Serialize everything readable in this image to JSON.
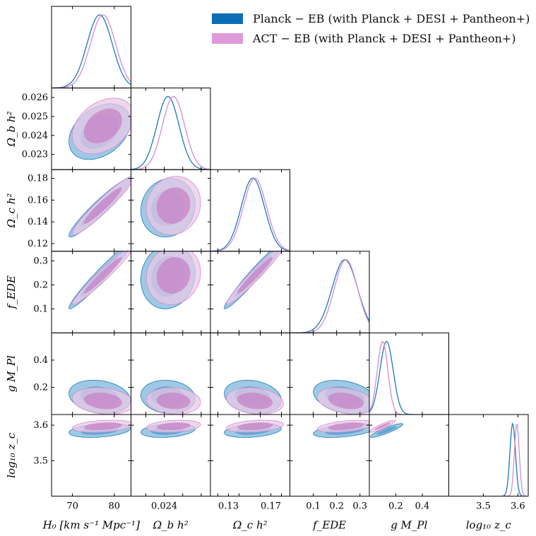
{
  "legend": {
    "items": [
      {
        "label": "Planck − EB (with Planck + DESI + Pantheon+)",
        "color": "#0a6fb4"
      },
      {
        "label": "ACT − EB (with Planck + DESI + Pantheon+)",
        "color": "#df9ad9"
      }
    ]
  },
  "colors": {
    "planck_line": "#1a7ab8",
    "planck_fill_outer": "#8cc0df",
    "planck_fill_inner": "#2f86c2",
    "act_line": "#d88ad2",
    "act_fill_outer": "#e9c8e6",
    "act_fill_inner": "#c77fc5"
  },
  "chart_data": {
    "type": "triangle-corner-plot",
    "parameters": [
      {
        "name": "H0",
        "label": "H₀ [km s⁻¹ Mpc⁻¹]",
        "range": [
          65,
          84
        ],
        "ticks": [
          70,
          80
        ],
        "tick_labels": [
          "70",
          "80"
        ]
      },
      {
        "name": "omega_b",
        "label": "Ω_b h²",
        "range": [
          0.0222,
          0.0265
        ],
        "ticks": [
          0.023,
          0.024,
          0.025,
          0.026
        ],
        "tick_labels": [
          "0.023",
          "0.024",
          "0.025",
          "0.026"
        ],
        "x_tick_labels": [
          "0.024"
        ]
      },
      {
        "name": "omega_c",
        "label": "Ω_c h²",
        "range": [
          0.113,
          0.188
        ],
        "ticks": [
          0.12,
          0.14,
          0.16,
          0.18
        ],
        "tick_labels": [
          "0.12",
          "0.14",
          "0.16",
          "0.18"
        ],
        "x_tick_labels": [
          "0.13",
          "0.17"
        ]
      },
      {
        "name": "f_EDE",
        "label": "f_EDE",
        "range": [
          0.0,
          0.34
        ],
        "ticks": [
          0.1,
          0.2,
          0.3
        ],
        "tick_labels": [
          "0.1",
          "0.2",
          "0.3"
        ]
      },
      {
        "name": "gM_Pl",
        "label": "g M_Pl",
        "range": [
          0.0,
          0.6
        ],
        "ticks": [
          0.2,
          0.4
        ],
        "tick_labels": [
          "0.2",
          "0.4"
        ]
      },
      {
        "name": "log10_zc",
        "label": "log₁₀ z_c",
        "range": [
          3.4,
          3.63
        ],
        "ticks": [
          3.5,
          3.6
        ],
        "tick_labels": [
          "3.5",
          "3.6"
        ]
      }
    ],
    "series": [
      {
        "name": "Planck − EB (with Planck + DESI + Pantheon+)",
        "marginals": {
          "H0": {
            "mean": 76.5,
            "sigma": 3.0
          },
          "omega_b": {
            "mean": 0.0242,
            "sigma": 0.0006
          },
          "omega_c": {
            "mean": 0.153,
            "sigma": 0.011
          },
          "f_EDE": {
            "mean": 0.235,
            "sigma": 0.055
          },
          "gM_Pl": {
            "mean": 0.13,
            "sigma": 0.05
          },
          "log10_zc": {
            "mean": 3.585,
            "sigma": 0.008
          }
        }
      },
      {
        "name": "ACT − EB (with Planck + DESI + Pantheon+)",
        "marginals": {
          "H0": {
            "mean": 77.3,
            "sigma": 3.0
          },
          "omega_b": {
            "mean": 0.0245,
            "sigma": 0.0006
          },
          "omega_c": {
            "mean": 0.155,
            "sigma": 0.011
          },
          "f_EDE": {
            "mean": 0.24,
            "sigma": 0.05
          },
          "gM_Pl": {
            "mean": 0.1,
            "sigma": 0.04
          },
          "log10_zc": {
            "mean": 3.597,
            "sigma": 0.007
          }
        }
      }
    ]
  }
}
